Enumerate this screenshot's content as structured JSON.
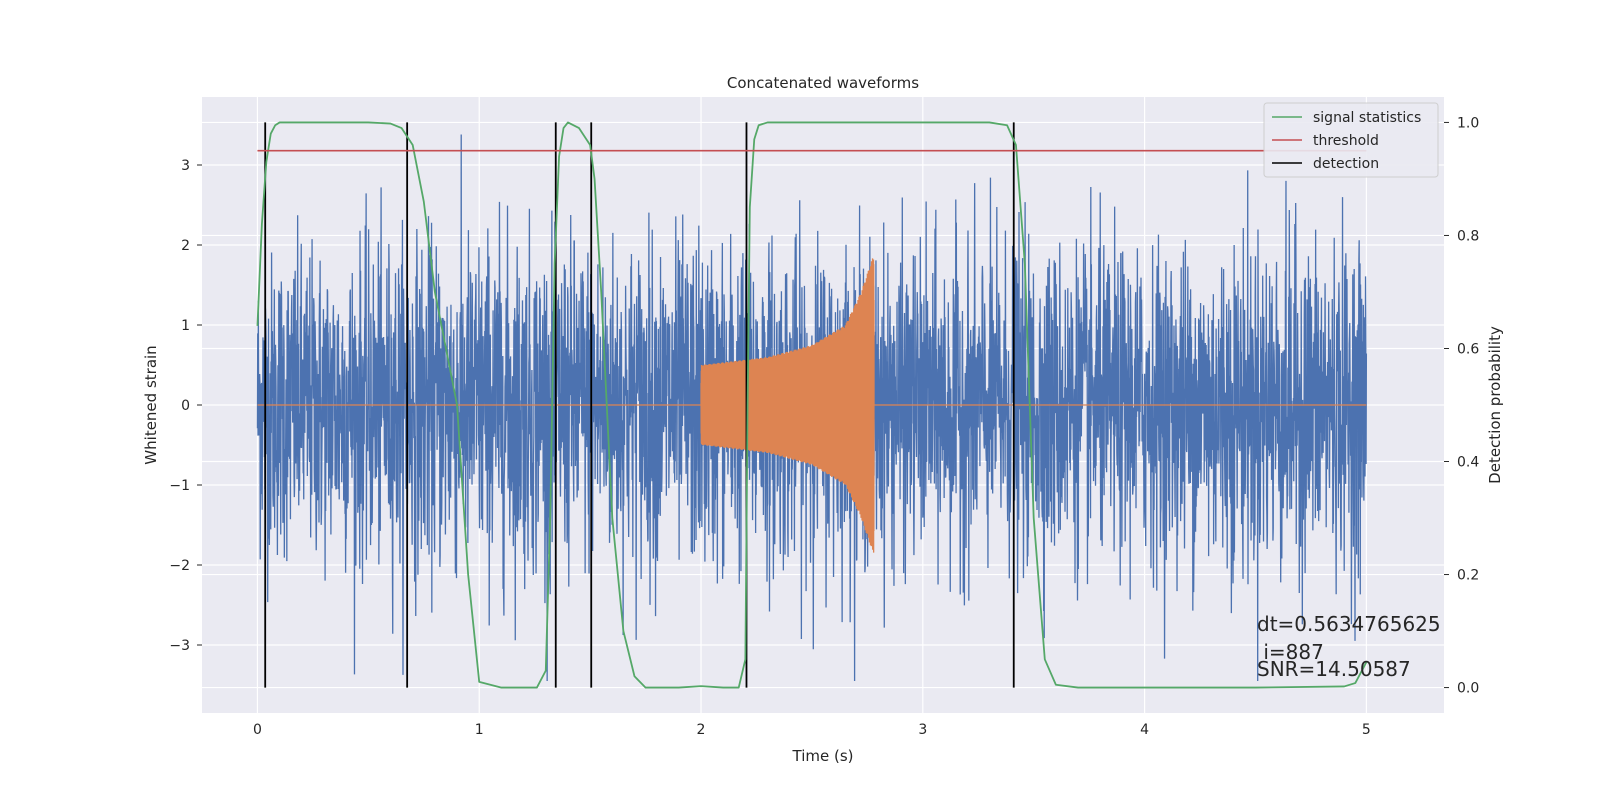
{
  "chart_data": {
    "type": "line",
    "title": "Concatenated waveforms",
    "xlabel": "Time (s)",
    "ylabel": "Whitened strain",
    "y2label": "Detection probability",
    "xlim": [
      -0.25,
      5.35
    ],
    "ylim": [
      -3.85,
      3.85
    ],
    "y2lim": [
      -0.045,
      1.045
    ],
    "xticks": [
      0,
      1,
      2,
      3,
      4,
      5
    ],
    "yticks": [
      -3,
      -2,
      -1,
      0,
      1,
      2,
      3
    ],
    "y2ticks": [
      0.0,
      0.2,
      0.4,
      0.6,
      0.8,
      1.0
    ],
    "xtick_labels": [
      "0",
      "1",
      "2",
      "3",
      "4",
      "5"
    ],
    "ytick_labels": [
      "−3",
      "−2",
      "−1",
      "0",
      "1",
      "2",
      "3"
    ],
    "y2tick_labels": [
      "0.0",
      "0.2",
      "0.4",
      "0.6",
      "0.8",
      "1.0"
    ],
    "grid": true,
    "legend_position": "top-right",
    "series": [
      {
        "key": "noise",
        "axis": "left",
        "color": "#4c72b0",
        "x_range": [
          0,
          5
        ],
        "envelope": [
          [
            0,
            1.3
          ],
          [
            0.5,
            1.35
          ],
          [
            1.0,
            1.45
          ],
          [
            1.5,
            1.4
          ],
          [
            2.0,
            1.4
          ],
          [
            2.5,
            1.35
          ],
          [
            3.0,
            1.3
          ],
          [
            3.5,
            1.35
          ],
          [
            4.0,
            1.3
          ],
          [
            4.5,
            1.45
          ],
          [
            5.0,
            1.35
          ]
        ]
      },
      {
        "key": "waveform",
        "axis": "left",
        "color": "#dd8452",
        "segment": [
          2.0,
          2.78
        ],
        "amplitude_points": [
          [
            2.0,
            0.5
          ],
          [
            2.3,
            0.6
          ],
          [
            2.5,
            0.75
          ],
          [
            2.65,
            1.0
          ],
          [
            2.72,
            1.4
          ],
          [
            2.775,
            1.85
          ]
        ]
      },
      {
        "name": "signal statistics",
        "axis": "right",
        "color": "#55a868",
        "x": [
          0.0,
          0.02,
          0.04,
          0.06,
          0.08,
          0.1,
          0.15,
          0.3,
          0.5,
          0.6,
          0.65,
          0.7,
          0.75,
          0.8,
          0.85,
          0.9,
          0.95,
          1.0,
          1.1,
          1.2,
          1.26,
          1.3,
          1.32,
          1.34,
          1.36,
          1.38,
          1.4,
          1.45,
          1.5,
          1.52,
          1.55,
          1.6,
          1.65,
          1.7,
          1.75,
          1.8,
          1.9,
          2.0,
          2.1,
          2.17,
          2.2,
          2.21,
          2.22,
          2.24,
          2.26,
          2.3,
          2.5,
          3.0,
          3.3,
          3.38,
          3.42,
          3.46,
          3.5,
          3.55,
          3.6,
          3.7,
          4.0,
          4.5,
          4.9,
          4.95,
          4.98,
          5.0
        ],
        "values": [
          0.64,
          0.82,
          0.93,
          0.98,
          0.995,
          1.0,
          1.0,
          1.0,
          1.0,
          0.998,
          0.99,
          0.96,
          0.86,
          0.7,
          0.6,
          0.5,
          0.2,
          0.01,
          0.0,
          0.0,
          0.0,
          0.03,
          0.3,
          0.75,
          0.94,
          0.99,
          1.0,
          0.99,
          0.96,
          0.9,
          0.7,
          0.3,
          0.1,
          0.02,
          0.0,
          0.0,
          0.0,
          0.0025,
          0.0,
          0.0,
          0.05,
          0.5,
          0.85,
          0.97,
          0.995,
          1.0,
          1.0,
          1.0,
          1.0,
          0.995,
          0.96,
          0.75,
          0.3,
          0.05,
          0.005,
          0.0,
          0.0,
          0.0,
          0.002,
          0.008,
          0.03,
          0.045
        ]
      },
      {
        "name": "threshold",
        "axis": "right",
        "color": "#c44e52",
        "x": [
          0.0,
          5.0
        ],
        "values": [
          0.95,
          0.95
        ]
      },
      {
        "name": "detection",
        "axis": "right",
        "color": "#000000",
        "x": [
          0.035,
          0.675,
          1.345,
          1.505,
          2.205,
          3.41
        ],
        "range": [
          0.0,
          1.0
        ]
      }
    ],
    "annotations": [
      "dt=0.5634765625",
      " i=887",
      "SNR=14.50587"
    ]
  }
}
